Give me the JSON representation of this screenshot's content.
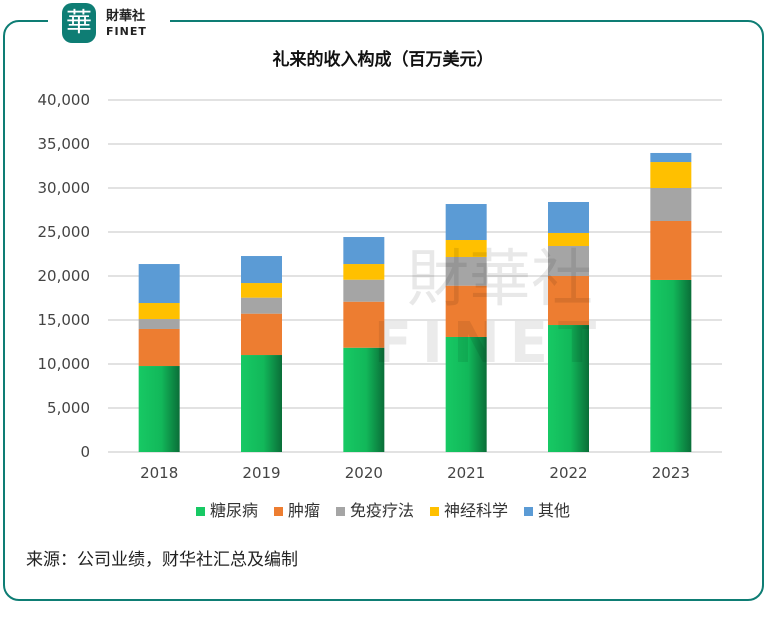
{
  "brand": {
    "name_cn": "財華社",
    "name_en": "FINET",
    "seal_char": "華"
  },
  "watermark": {
    "cn": "財華社",
    "en": "FINET"
  },
  "source": "来源：公司业绩，财华社汇总及编制",
  "chart_data": {
    "type": "bar",
    "stacked": true,
    "title": "礼来的收入构成（百万美元）",
    "categories": [
      "2018",
      "2019",
      "2020",
      "2021",
      "2022",
      "2023"
    ],
    "ylim": [
      0,
      40000
    ],
    "yticks": [
      0,
      5000,
      10000,
      15000,
      20000,
      25000,
      30000,
      35000,
      40000
    ],
    "ytick_labels": [
      "0",
      "5,000",
      "10,000",
      "15,000",
      "20,000",
      "25,000",
      "30,000",
      "35,000",
      "40,000"
    ],
    "grid": true,
    "legend_position": "bottom",
    "series": [
      {
        "name": "糖尿病",
        "color": "#17c964",
        "values": [
          9770,
          11020,
          11850,
          13070,
          14430,
          19550
        ]
      },
      {
        "name": "肿瘤",
        "color": "#ed7d31",
        "values": [
          4210,
          4700,
          5230,
          5830,
          5570,
          6700
        ]
      },
      {
        "name": "免疫疗法",
        "color": "#a5a5a5",
        "values": [
          1130,
          1820,
          2500,
          3260,
          3410,
          3750
        ]
      },
      {
        "name": "神经科学",
        "color": "#ffc000",
        "values": [
          1820,
          1660,
          1780,
          1930,
          1480,
          2950
        ]
      },
      {
        "name": "其他",
        "color": "#5b9bd5",
        "values": [
          4430,
          3070,
          3070,
          4090,
          3520,
          1030
        ]
      }
    ]
  }
}
